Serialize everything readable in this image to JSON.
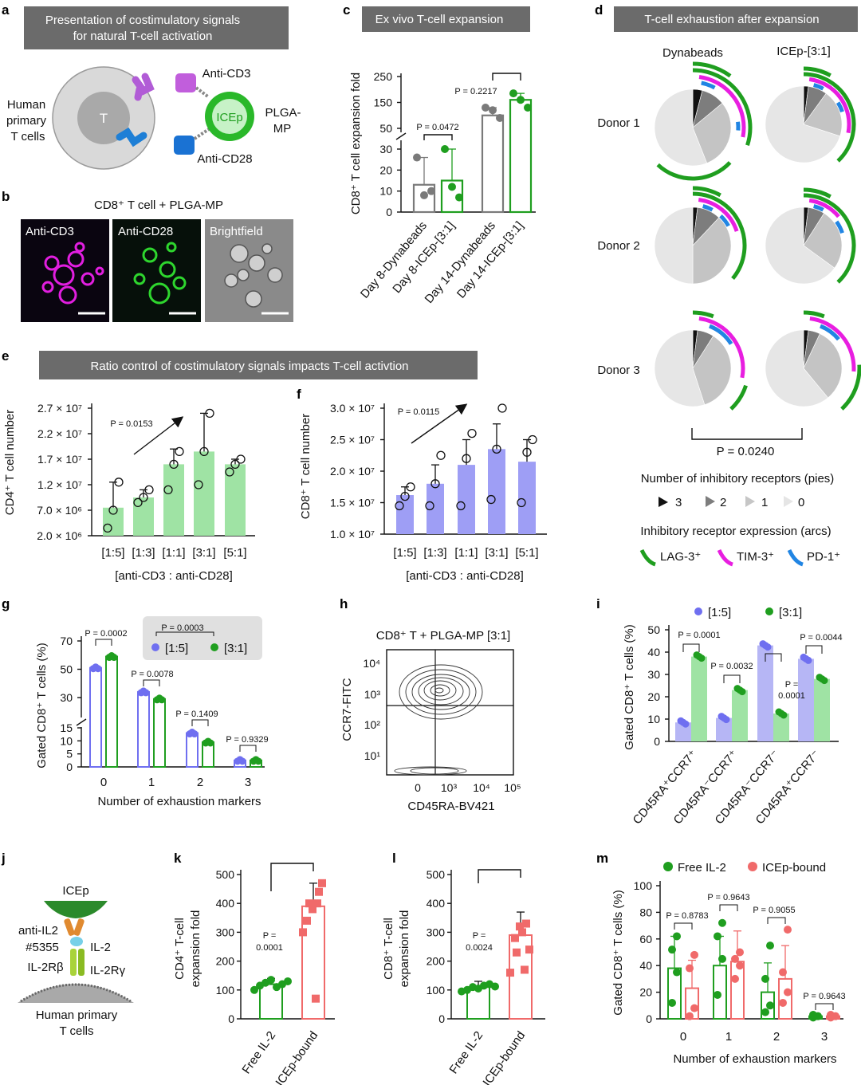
{
  "panels": {
    "a": {
      "letter": "a",
      "header": [
        "Presentation of costimulatory signals",
        "for natural T-cell activation"
      ],
      "cell_label": [
        "Human",
        "primary",
        "T cells"
      ],
      "t": "T",
      "anti_cd3": "Anti-CD3",
      "anti_cd28": "Anti-CD28",
      "icep": "ICEp",
      "plga": [
        "PLGA-",
        "MP"
      ]
    },
    "b": {
      "letter": "b",
      "title": "CD8⁺ T cell + PLGA-MP",
      "images": [
        "Anti-CD3",
        "Anti-CD28",
        "Brightfield"
      ]
    },
    "c": {
      "letter": "c",
      "header": "Ex vivo T-cell expansion",
      "ylabel": "CD8⁺ T cell expansion fold",
      "pvals": [
        "P = 0.0472",
        "P = 0.2217"
      ],
      "yticks_upper": [
        "250",
        "150",
        "50"
      ],
      "yticks_lower": [
        "30",
        "20",
        "10",
        "0"
      ],
      "categories": [
        "Day 8-Dynabeads",
        "Day 8-ICEp-[3:1]",
        "Day 14-Dynabeads",
        "Day 14-ICEp-[3:1]"
      ]
    },
    "d": {
      "letter": "d",
      "header": "T-cell exhaustion after expansion",
      "cols": [
        "Dynabeads",
        "ICEp-[3:1]"
      ],
      "rows": [
        "Donor 1",
        "Donor 2",
        "Donor 3"
      ],
      "pval": "P = 0.0240",
      "legend_pies_title": "Number of inhibitory receptors (pies)",
      "legend_pies": [
        "3",
        "2",
        "1",
        "0"
      ],
      "legend_arcs_title": "Inhibitory receptor expression (arcs)",
      "legend_arcs": [
        "LAG-3⁺",
        "TIM-3⁺",
        "PD-1⁺"
      ],
      "colors": {
        "lag3": "#1f9e1f",
        "tim3": "#e81ee0",
        "pd1": "#2185e3"
      }
    },
    "e": {
      "letter": "e",
      "header": "Ratio control of costimulatory signals impacts T-cell activtion",
      "ylabel": "CD4⁺ T cell number",
      "pval": "P = 0.0153",
      "yticks": [
        "2.7 × 10⁷",
        "2.2 × 10⁷",
        "1.7 × 10⁷",
        "1.2 × 10⁷",
        "7.0 × 10⁶",
        "2.0 × 10⁶"
      ],
      "categories": [
        "[1:5]",
        "[1:3]",
        "[1:1]",
        "[3:1]",
        "[5:1]"
      ],
      "xlabel": "[anti-CD3 : anti-CD28]",
      "color": "#9fe3a4"
    },
    "f": {
      "letter": "f",
      "ylabel": "CD8⁺ T cell number",
      "pval": "P = 0.0115",
      "yticks": [
        "3.0 × 10⁷",
        "2.5 × 10⁷",
        "2.0 × 10⁷",
        "1.5 × 10⁷",
        "1.0 × 10⁷"
      ],
      "categories": [
        "[1:5]",
        "[1:3]",
        "[1:1]",
        "[3:1]",
        "[5:1]"
      ],
      "xlabel": "[anti-CD3 : anti-CD28]",
      "color": "#9e9ef5"
    },
    "g": {
      "letter": "g",
      "ylabel": "Gated CD8⁺ T cells (%)",
      "xlabel": "Number of exhaustion markers",
      "legend_p": "P = 0.0003",
      "legend": [
        "[1:5]",
        "[3:1]"
      ],
      "pvals": [
        "P = 0.0002",
        "P = 0.0078",
        "P = 0.1409",
        "P = 0.9329"
      ],
      "yticks_upper": [
        "70",
        "50",
        "30"
      ],
      "yticks_lower": [
        "15",
        "10",
        "5",
        "0"
      ],
      "categories": [
        "0",
        "1",
        "2",
        "3"
      ]
    },
    "h": {
      "letter": "h",
      "title": "CD8⁺ T + PLGA-MP [3:1]",
      "ylabel": "CCR7-FITC",
      "xlabel": "CD45RA-BV421",
      "yticks": [
        "10⁴",
        "10³",
        "10²",
        "10¹"
      ],
      "xticks": [
        "0",
        "10³",
        "10⁴",
        "10⁵"
      ]
    },
    "i": {
      "letter": "i",
      "ylabel": "Gated CD8⁺ T cells (%)",
      "legend": [
        "[1:5]",
        "[3:1]"
      ],
      "pvals": [
        "P = 0.0001",
        "P = 0.0032",
        "P =",
        "0.0001",
        "P = 0.0044"
      ],
      "yticks": [
        "50",
        "40",
        "30",
        "20",
        "10",
        "0"
      ],
      "categories": [
        "CD45RA⁺CCR7⁺",
        "CD45RA⁻CCR7⁺",
        "CD45RA⁻CCR7⁻",
        "CD45RA⁺CCR7⁻"
      ]
    },
    "j": {
      "letter": "j",
      "icep": "ICEp",
      "anti": [
        "anti-IL2",
        "#5355"
      ],
      "il2": "IL-2",
      "rb": "IL-2Rβ",
      "rg": "IL-2Rγ",
      "cells": [
        "Human primary",
        "T cells"
      ]
    },
    "k": {
      "letter": "k",
      "ylabel": [
        "CD4⁺ T-cell",
        "expansion fold"
      ],
      "yticks": [
        "500",
        "400",
        "300",
        "200",
        "100",
        "0"
      ],
      "pval": [
        "P =",
        "0.0001"
      ],
      "categories": [
        "Free IL-2",
        "ICEp-bound"
      ]
    },
    "l": {
      "letter": "l",
      "ylabel": [
        "CD8⁺ T-cell",
        "expansion fold"
      ],
      "yticks": [
        "500",
        "400",
        "300",
        "200",
        "100",
        "0"
      ],
      "pval": [
        "P =",
        "0.0024"
      ],
      "categories": [
        "Free IL-2",
        "ICEp-bound"
      ]
    },
    "m": {
      "letter": "m",
      "ylabel": "Gated CD8⁺ T cells (%)",
      "xlabel": "Number of exhaustion markers",
      "legend": [
        "Free IL-2",
        "ICEp-bound"
      ],
      "pvals": [
        "P = 0.8783",
        "P = 0.9643",
        "P = 0.9055",
        "P = 0.9643"
      ],
      "yticks": [
        "100",
        "80",
        "60",
        "40",
        "20",
        "0"
      ],
      "categories": [
        "0",
        "1",
        "2",
        "3"
      ]
    }
  },
  "chart_data": [
    {
      "panel": "c",
      "type": "bar",
      "categories": [
        "Day 8-Dynabeads",
        "Day 8-ICEp-[3:1]",
        "Day 14-Dynabeads",
        "Day 14-ICEp-[3:1]"
      ],
      "values": [
        13,
        15,
        100,
        160
      ],
      "points": [
        [
          26,
          8,
          10
        ],
        [
          30,
          12,
          7
        ],
        [
          130,
          120,
          90
        ],
        [
          185,
          160,
          130
        ]
      ]
    },
    {
      "panel": "e",
      "type": "bar",
      "categories": [
        "[1:5]",
        "[1:3]",
        "[1:1]",
        "[3:1]",
        "[5:1]"
      ],
      "values": [
        7500000.0,
        9500000.0,
        16000000.0,
        18500000.0,
        16000000.0
      ],
      "ylim": [
        2000000.0,
        27000000.0
      ]
    },
    {
      "panel": "f",
      "type": "bar",
      "categories": [
        "[1:5]",
        "[1:3]",
        "[1:1]",
        "[3:1]",
        "[5:1]"
      ],
      "values": [
        16200000.0,
        18000000.0,
        21000000.0,
        23500000.0,
        21500000.0
      ],
      "ylim": [
        10000000.0,
        30000000.0
      ]
    },
    {
      "panel": "g",
      "type": "bar",
      "categories": [
        "0",
        "1",
        "2",
        "3"
      ],
      "series": [
        {
          "name": "[1:5]",
          "values": [
            51,
            34,
            13,
            2.5
          ]
        },
        {
          "name": "[3:1]",
          "values": [
            59,
            29,
            9.5,
            2.5
          ]
        }
      ]
    },
    {
      "panel": "i",
      "type": "bar",
      "categories": [
        "CD45RA⁺CCR7⁺",
        "CD45RA⁻CCR7⁺",
        "CD45RA⁻CCR7⁻",
        "CD45RA⁺CCR7⁻"
      ],
      "series": [
        {
          "name": "[1:5]",
          "values": [
            8.5,
            10.5,
            43,
            37
          ]
        },
        {
          "name": "[3:1]",
          "values": [
            38,
            23,
            12.5,
            28
          ]
        }
      ],
      "ylim": [
        0,
        50
      ]
    },
    {
      "panel": "k",
      "type": "bar",
      "categories": [
        "Free IL-2",
        "ICEp-bound"
      ],
      "values": [
        120,
        390
      ],
      "ylim": [
        0,
        500
      ]
    },
    {
      "panel": "l",
      "type": "bar",
      "categories": [
        "Free IL-2",
        "ICEp-bound"
      ],
      "values": [
        110,
        290
      ],
      "ylim": [
        0,
        500
      ]
    },
    {
      "panel": "m",
      "type": "bar",
      "categories": [
        "0",
        "1",
        "2",
        "3"
      ],
      "series": [
        {
          "name": "Free IL-2",
          "values": [
            38,
            40,
            20,
            2
          ]
        },
        {
          "name": "ICEp-bound",
          "values": [
            23,
            43,
            30,
            2
          ]
        }
      ],
      "ylim": [
        0,
        100
      ]
    }
  ]
}
